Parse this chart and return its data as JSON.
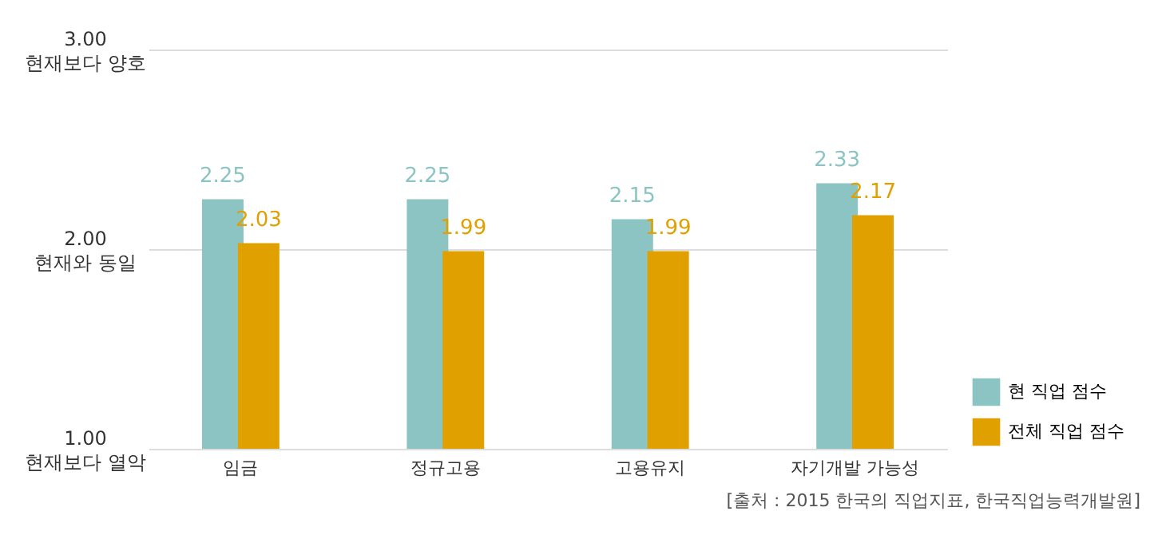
{
  "chart_data": {
    "type": "bar",
    "categories": [
      "임금",
      "정규고용",
      "고용유지",
      "자기개발 가능성"
    ],
    "series": [
      {
        "name": "현 직업 점수",
        "color": "#8cc4c4",
        "values": [
          2.25,
          2.25,
          2.15,
          2.33
        ]
      },
      {
        "name": "전체 직업 점수",
        "color": "#e0a000",
        "values": [
          2.03,
          1.99,
          1.99,
          2.17
        ]
      }
    ],
    "ylim": [
      1,
      3
    ],
    "yticks": [
      {
        "value": 1,
        "label": "1.00\n현재보다 열악"
      },
      {
        "value": 2,
        "label": "2.00\n현재와 동일"
      },
      {
        "value": 3,
        "label": "3.00\n현재보다 양호"
      }
    ],
    "grid": "y",
    "legend": "bottom right",
    "data_labels": true,
    "annotations": [
      "[출처 : 2015 한국의 직업지표, 한국직업능력개발원]"
    ]
  }
}
